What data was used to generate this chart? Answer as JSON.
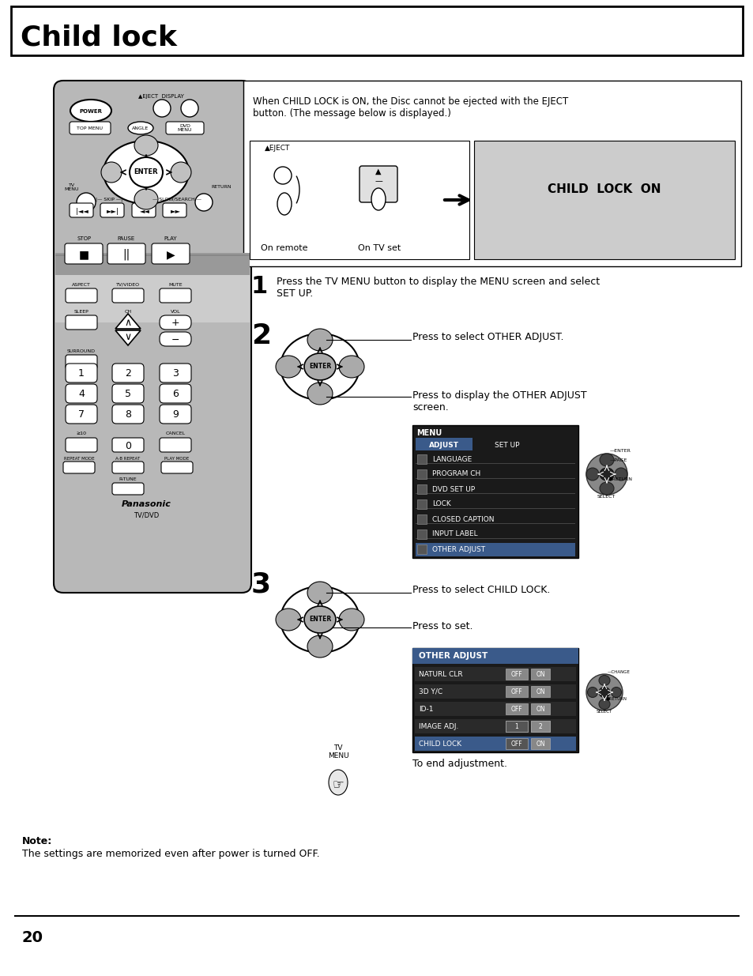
{
  "title": "Child lock",
  "page_number": "20",
  "bg_color": "#ffffff",
  "title_box_color": "#000000",
  "remote_bg": "#b8b8b8",
  "remote_border": "#000000",
  "menu_bg": "#1a1a1a",
  "menu_header_blue": "#3a5a8a",
  "other_adjust_bg": "#1a1a1a",
  "other_adjust_header": "#3a5a8a",
  "intro_text": "When CHILD LOCK is ON, the Disc cannot be ejected with the EJECT\nbutton. (The message below is displayed.)",
  "child_lock_on_label": "CHILD  LOCK  ON",
  "on_remote_label": "On remote",
  "on_tv_set_label": "On TV set",
  "step1_text": "Press the TV MENU button to display the MENU screen and select\nSET UP.",
  "step2_text1": "Press to select OTHER ADJUST.",
  "step2_text2": "Press to display the OTHER ADJUST\nscreen.",
  "step3_text1": "Press to select CHILD LOCK.",
  "step3_text2": "Press to set.",
  "end_text": "To end adjustment.",
  "note_label": "Note:",
  "note_text": "The settings are memorized even after power is turned OFF.",
  "menu_items": [
    "LANGUAGE",
    "PROGRAM CH",
    "DVD SET UP",
    "LOCK",
    "CLOSED CAPTION",
    "INPUT LABEL",
    "OTHER ADJUST"
  ],
  "menu_tabs": [
    "ADJUST",
    "SET UP"
  ],
  "other_adjust_items": [
    "NATURL CLR",
    "3D Y/C",
    "ID-1",
    "IMAGE ADJ.",
    "CHILD LOCK"
  ],
  "other_adjust_values": [
    "OFF  ON",
    "OFF  ON",
    "OFF  ON",
    "1   2",
    "OFF  ON"
  ]
}
